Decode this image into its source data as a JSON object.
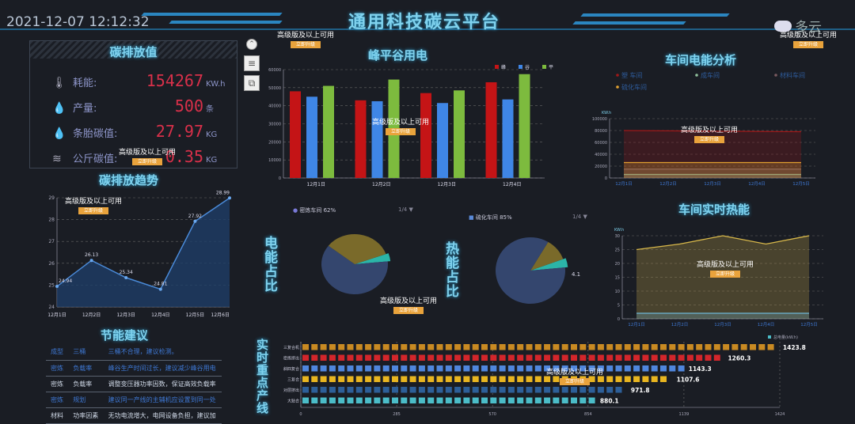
{
  "header": {
    "datetime": "2021-12-07 12:12:32",
    "title": "通用科技碳云平台",
    "weather": "多云"
  },
  "watermark": {
    "text": "高级版及以上可用",
    "badge": "立即升级"
  },
  "carbon": {
    "title": "碳排放值",
    "items": [
      {
        "icon": "thermometer-icon",
        "glyph": "🌡",
        "label": "耗能:",
        "value": "154267",
        "unit": "KW.h"
      },
      {
        "icon": "drop-icon",
        "glyph": "💧",
        "label": "产量:",
        "value": "500",
        "unit": "条"
      },
      {
        "icon": "drop-carbon-icon",
        "glyph": "💧",
        "label": "条胎碳值:",
        "value": "27.97",
        "unit": "KG"
      },
      {
        "icon": "waves-icon",
        "glyph": "≋",
        "label": "公斤碳值:",
        "value": "0.35",
        "unit": "KG"
      }
    ]
  },
  "trend": {
    "title": "碳排放趋势"
  },
  "advice": {
    "title": "节能建议",
    "rows": [
      [
        "成型",
        "三桶",
        "三桶不合理，建议检测。"
      ],
      [
        "密炼",
        "负载率",
        "峰谷生产时间过长，建议减少峰谷用电"
      ],
      [
        "密炼",
        "负载率",
        "调整变压器功率因数，保证高效负载率"
      ],
      [
        "密炼",
        "规划",
        "建议同一产线的主辅机应设置到同一处"
      ],
      [
        "材料",
        "功率因素",
        "无功电流增大，电网设备负担，建议加"
      ]
    ]
  },
  "pies": {
    "elec_label": "电能占比",
    "heat_label": "热能占比",
    "elec_legend": "密炼车间 62%",
    "heat_legend": "硫化车间 85%",
    "elec_page": "1/4",
    "heat_page": "1/4",
    "heat_slice_label": "4.1"
  },
  "lines_title": "实时重点产线",
  "chart_data": [
    {
      "type": "line",
      "title": "碳排放趋势",
      "categories": [
        "12月1日",
        "12月2日",
        "12月3日",
        "12月4日",
        "12月5日",
        "12月6日"
      ],
      "values": [
        24.94,
        26.13,
        25.34,
        24.81,
        27.92,
        28.99
      ],
      "ylim": [
        24,
        29
      ],
      "yticks": [
        24,
        25,
        26,
        27,
        28,
        29
      ],
      "grid": true,
      "color": "#3a7cc4"
    },
    {
      "type": "bar",
      "title": "峰平谷用电",
      "categories": [
        "12月1日",
        "12月2日",
        "12月3日",
        "12月4日"
      ],
      "series": [
        {
          "name": "峰",
          "values": [
            48000,
            43000,
            47000,
            53000
          ],
          "color": "#c41416"
        },
        {
          "name": "谷",
          "values": [
            45000,
            42500,
            41500,
            43500
          ],
          "color": "#3f86e6"
        },
        {
          "name": "平",
          "values": [
            51000,
            54500,
            48500,
            57500
          ],
          "color": "#7dbb3e"
        }
      ],
      "ylim": [
        0,
        60000
      ],
      "yticks": [
        0,
        10000,
        20000,
        30000,
        40000,
        50000,
        60000
      ],
      "legend": "top-right",
      "grid": true
    },
    {
      "type": "area",
      "title": "车间电能分析",
      "ylabel": "KW.h",
      "categories": [
        "12月1日",
        "12月2日",
        "12月3日",
        "12月4日",
        "12月5日"
      ],
      "series": [
        {
          "name": "塑 车间",
          "values": [
            80000,
            79500,
            79000,
            78500,
            78000
          ],
          "color": "#a01818"
        },
        {
          "name": "成车间",
          "values": [
            6000,
            6000,
            6000,
            6000,
            6000
          ],
          "color": "#8fbf9a"
        },
        {
          "name": "材料车间",
          "values": [
            15000,
            15000,
            15000,
            15000,
            15000
          ],
          "color": "#7a5a60"
        },
        {
          "name": "硫化车间",
          "values": [
            26000,
            26000,
            26000,
            26000,
            26000
          ],
          "color": "#e0a030"
        }
      ],
      "ylim": [
        0,
        100000
      ],
      "yticks": [
        0,
        20000,
        40000,
        60000,
        80000,
        100000
      ],
      "legend": "top",
      "grid": true
    },
    {
      "type": "area",
      "title": "车间实时热能",
      "ylabel": "KW.h",
      "categories": [
        "12月1日",
        "12月2日",
        "12月3日",
        "12月4日",
        "12月5日"
      ],
      "series": [
        {
          "values": [
            25,
            27,
            30,
            27,
            30
          ],
          "color": "#d8b84a"
        },
        {
          "values": [
            2,
            2,
            2,
            2,
            2
          ],
          "color": "#6fb7d8"
        }
      ],
      "ylim": [
        0,
        30
      ],
      "yticks": [
        0,
        5,
        10,
        15,
        20,
        25,
        30
      ],
      "grid": true
    },
    {
      "type": "pie",
      "title": "电能占比",
      "slices": [
        {
          "name": "密炼车间",
          "value": 62,
          "color": "#34466e"
        },
        {
          "value": 34,
          "color": "#7a6a2a"
        },
        {
          "value": 4,
          "color": "#2bb5a8"
        }
      ],
      "legend": "top"
    },
    {
      "type": "pie",
      "title": "热能占比",
      "slices": [
        {
          "name": "硫化车间",
          "value": 85,
          "color": "#34466e"
        },
        {
          "value": 10.9,
          "color": "#7a6a2a"
        },
        {
          "value": 4.1,
          "color": "#2bb5a8"
        }
      ],
      "legend": "top"
    },
    {
      "type": "bar",
      "orientation": "horizontal",
      "title": "实时重点产线",
      "legend_label": "总电量(kW.h)",
      "categories": [
        "三复合机",
        "密炼挤出",
        "斜四复合",
        "三复合",
        "对层挤出",
        "大贴合"
      ],
      "values": [
        1423.8,
        1260.3,
        1143.3,
        1107.6,
        971.8,
        880.1
      ],
      "colors": [
        "#c98a22",
        "#d3262b",
        "#4f86dd",
        "#e8b520",
        "#2d5f98",
        "#4bbcc8"
      ],
      "xlim": [
        0,
        1424
      ],
      "xticks": [
        0,
        285,
        570,
        854,
        1139,
        1424
      ],
      "legend": "top-right"
    }
  ]
}
